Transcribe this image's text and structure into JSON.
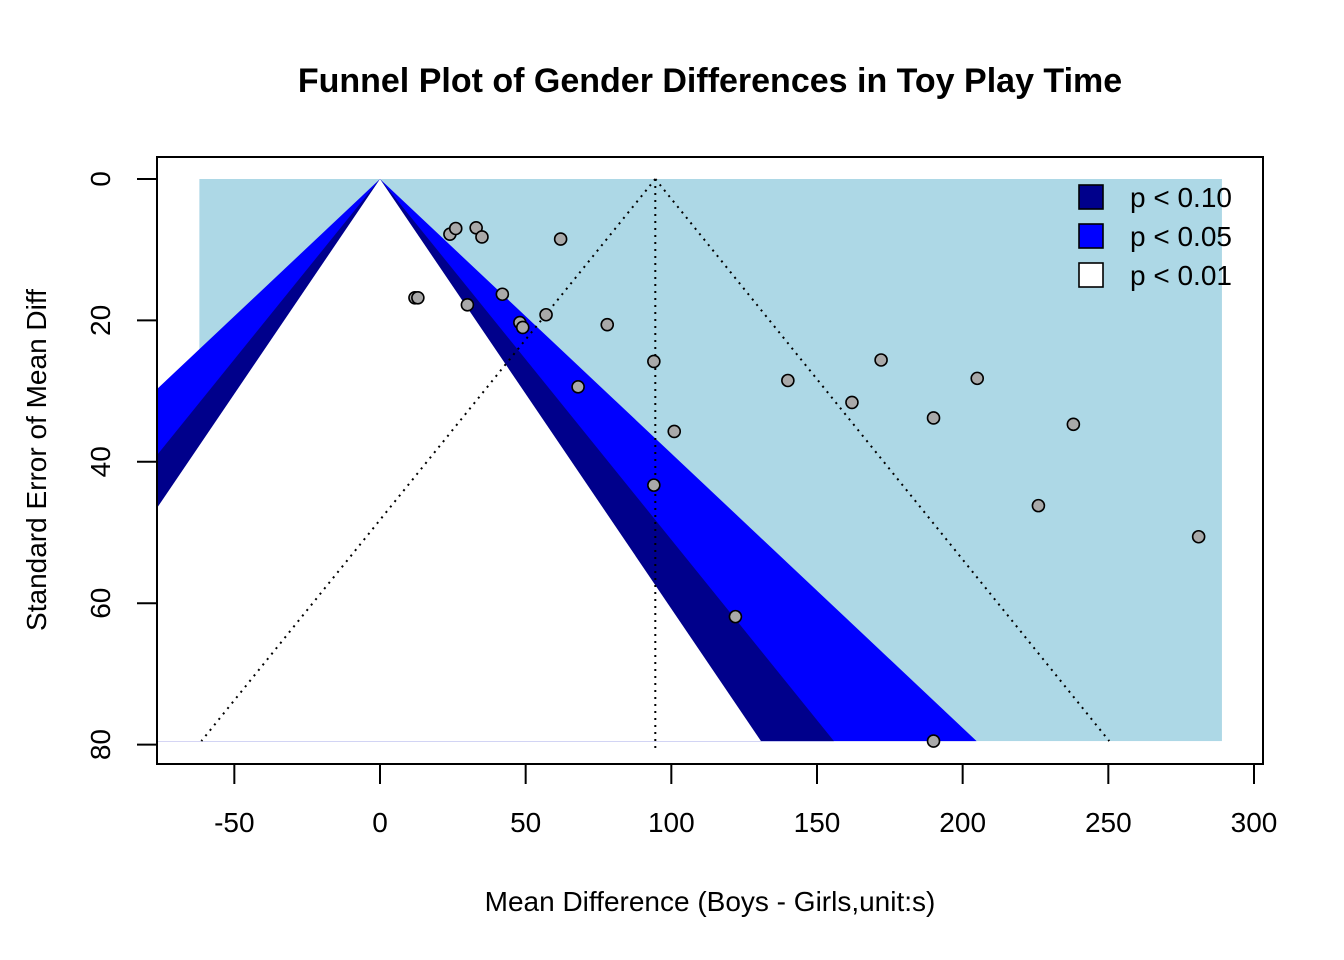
{
  "chart_data": {
    "type": "scatter",
    "subtype": "contour-enhanced funnel plot",
    "title": "Funnel Plot of Gender Differences in Toy Play Time",
    "xlabel": "Mean Difference (Boys - Girls,unit:s)",
    "ylabel": "Standard Error of Mean Diff",
    "xlim": [
      -80,
      300
    ],
    "ylim": [
      0,
      80
    ],
    "y_reversed": true,
    "x_ticks": [
      -50,
      0,
      50,
      100,
      150,
      200,
      250,
      300
    ],
    "y_ticks": [
      0,
      20,
      40,
      60,
      80
    ],
    "contour_center": 0,
    "summary_estimate": 94.5,
    "se_max": 79.5,
    "contour_levels": [
      {
        "label": "p < 0.10",
        "z": 1.645,
        "color": "#00008b"
      },
      {
        "label": "p < 0.05",
        "z": 1.96,
        "color": "#0000ff"
      },
      {
        "label": "p < 0.01",
        "z": 2.576,
        "color": "#add8e6"
      }
    ],
    "legend": {
      "placement": "top-right",
      "entries": [
        {
          "label": "p < 0.10",
          "fill": "#00008b"
        },
        {
          "label": "p < 0.05",
          "fill": "#0000ff"
        },
        {
          "label": "p < 0.01",
          "fill": "#ffffff"
        }
      ]
    },
    "point_color": "#a9a9a9",
    "points": [
      {
        "x": 12,
        "y": 16.8
      },
      {
        "x": 13,
        "y": 16.8
      },
      {
        "x": 24,
        "y": 7.8
      },
      {
        "x": 26,
        "y": 7.0
      },
      {
        "x": 30,
        "y": 17.8
      },
      {
        "x": 33,
        "y": 6.9
      },
      {
        "x": 35,
        "y": 8.2
      },
      {
        "x": 42,
        "y": 16.3
      },
      {
        "x": 48,
        "y": 20.3
      },
      {
        "x": 49,
        "y": 21.0
      },
      {
        "x": 57,
        "y": 19.2
      },
      {
        "x": 62,
        "y": 8.5
      },
      {
        "x": 68,
        "y": 29.4
      },
      {
        "x": 78,
        "y": 20.6
      },
      {
        "x": 94,
        "y": 25.8
      },
      {
        "x": 94,
        "y": 43.3
      },
      {
        "x": 101,
        "y": 35.7
      },
      {
        "x": 122,
        "y": 61.9
      },
      {
        "x": 140,
        "y": 28.5
      },
      {
        "x": 162,
        "y": 31.6
      },
      {
        "x": 172,
        "y": 25.6
      },
      {
        "x": 190,
        "y": 33.8
      },
      {
        "x": 190,
        "y": 79.5
      },
      {
        "x": 205,
        "y": 28.2
      },
      {
        "x": 226,
        "y": 46.2
      },
      {
        "x": 238,
        "y": 34.7
      },
      {
        "x": 281,
        "y": 50.6
      }
    ]
  }
}
